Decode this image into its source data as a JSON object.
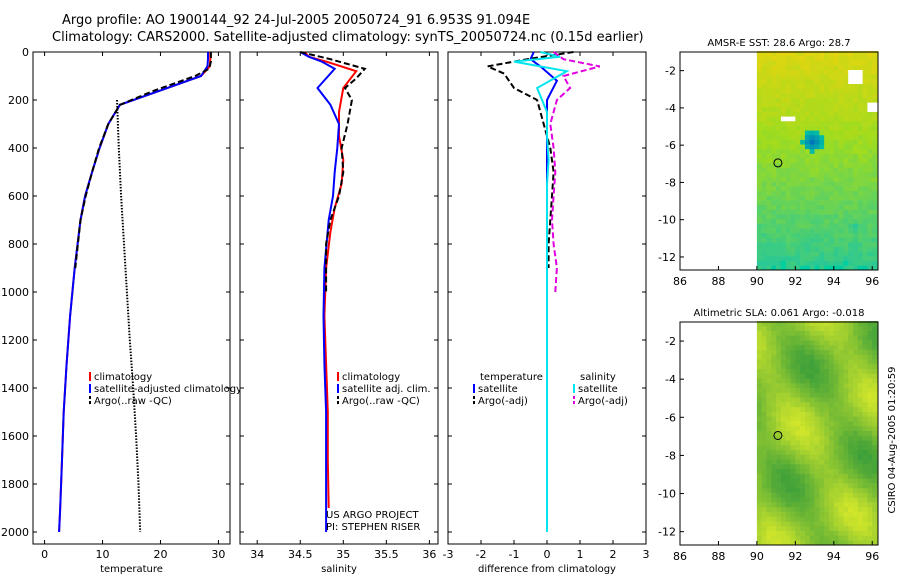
{
  "title_line1": "Argo profile: AO 1900144_92 24-Jul-2005 20050724_91 6.953S 91.094E",
  "title_line2": "Climatology: CARS2000. Satellite-adjusted climatology: synTS_20050724.nc (0.15d earlier)",
  "credit": "CSIRO 04-Aug-2005 01:20:59",
  "colors": {
    "climatology": "#ff0000",
    "satellite": "#0000ff",
    "argo": "#000000",
    "sal_satellite": "#00e5ee",
    "sal_argo": "#e000e0"
  },
  "chart_data": [
    {
      "type": "line",
      "xlabel": "temperature",
      "ylim": [
        2050,
        0
      ],
      "xlim": [
        -2,
        32
      ],
      "xticks": [
        "0",
        "10",
        "20",
        "30"
      ],
      "xtick_values": [
        0,
        10,
        20,
        30
      ],
      "yticks": [
        "0",
        "200",
        "400",
        "600",
        "800",
        "1000",
        "1200",
        "1400",
        "1600",
        "1800",
        "2000"
      ],
      "ytick_values": [
        0,
        200,
        400,
        600,
        800,
        1000,
        1200,
        1400,
        1600,
        1800,
        2000
      ],
      "legend": [
        "climatology",
        "satellite-adjusted climatology",
        "Argo(..raw -QC)"
      ],
      "series": [
        {
          "name": "climatology",
          "color": "#ff0000",
          "dash": "",
          "x": [
            28.6,
            28.6,
            28.5,
            27,
            20,
            13,
            11,
            9.5,
            8.2,
            7,
            6.2,
            5.2,
            4.4,
            3.8,
            3.3,
            3.0,
            2.7,
            2.5
          ],
          "y": [
            0,
            30,
            60,
            100,
            160,
            220,
            300,
            400,
            500,
            600,
            700,
            900,
            1100,
            1300,
            1500,
            1700,
            1900,
            2000
          ]
        },
        {
          "name": "satellite-adjusted climatology",
          "color": "#0000ff",
          "dash": "",
          "x": [
            28.2,
            28.2,
            28.1,
            27,
            20,
            13,
            11,
            9.5,
            8.2,
            7,
            6.2,
            5.2,
            4.4,
            3.8,
            3.3,
            3.0,
            2.7,
            2.5
          ],
          "y": [
            0,
            30,
            60,
            100,
            160,
            220,
            300,
            400,
            500,
            600,
            700,
            900,
            1100,
            1300,
            1500,
            1700,
            1900,
            2000
          ]
        },
        {
          "name": "Argo(..raw -QC)",
          "color": "#000000",
          "dash": "6,3",
          "x": [
            28.7,
            28.7,
            28.4,
            26,
            19,
            13,
            11,
            9.4,
            8.2,
            7.1,
            6.2,
            5.3
          ],
          "y": [
            0,
            40,
            70,
            100,
            160,
            220,
            300,
            400,
            500,
            600,
            700,
            900
          ]
        },
        {
          "name": "",
          "color": "#000000",
          "dash": "1.5,1.5",
          "x": [
            12.5,
            12.8,
            13.2,
            13.7,
            14.2,
            14.7,
            15.3,
            15.8,
            16.2,
            16.5
          ],
          "y": [
            200,
            400,
            600,
            800,
            1000,
            1200,
            1400,
            1600,
            1800,
            2000
          ]
        }
      ]
    },
    {
      "type": "line",
      "xlabel": "salinity",
      "ylim": [
        2050,
        0
      ],
      "xlim": [
        33.8,
        36.1
      ],
      "xticks": [
        "34",
        "34.5",
        "35",
        "35.5",
        "36"
      ],
      "xtick_values": [
        34,
        34.5,
        35,
        35.5,
        36
      ],
      "legend": [
        "climatology",
        "satellite adj. clim.",
        "Argo(..raw -QC)"
      ],
      "annotation": [
        "US ARGO PROJECT",
        "PI: STEPHEN RISER"
      ],
      "series": [
        {
          "name": "climatology",
          "color": "#ff0000",
          "dash": "",
          "x": [
            34.55,
            34.6,
            34.8,
            35.15,
            35.0,
            34.95,
            34.95,
            35.0,
            34.98,
            34.9,
            34.85,
            34.8,
            34.78,
            34.8,
            34.82,
            34.82,
            34.83
          ],
          "y": [
            0,
            20,
            40,
            80,
            150,
            250,
            350,
            450,
            550,
            650,
            750,
            900,
            1100,
            1300,
            1500,
            1700,
            1900
          ]
        },
        {
          "name": "satellite adj. clim.",
          "color": "#0000ff",
          "dash": "",
          "x": [
            34.5,
            34.6,
            34.75,
            34.9,
            34.7,
            34.85,
            34.95,
            34.93,
            34.9,
            34.88,
            34.83,
            34.78,
            34.77,
            34.78,
            34.8,
            34.8,
            34.8,
            34.8
          ],
          "y": [
            0,
            20,
            40,
            70,
            150,
            220,
            300,
            400,
            500,
            600,
            700,
            900,
            1100,
            1300,
            1500,
            1700,
            1900,
            2000
          ]
        },
        {
          "name": "Argo(..raw -QC)",
          "color": "#000000",
          "dash": "6,3",
          "x": [
            34.5,
            34.85,
            35.25,
            35.15,
            35.02,
            35.1,
            35.05,
            34.98,
            35.0,
            34.95,
            34.85,
            34.8,
            34.8,
            34.8
          ],
          "y": [
            0,
            30,
            70,
            110,
            150,
            200,
            300,
            400,
            500,
            600,
            700,
            800,
            900,
            1000
          ]
        }
      ]
    },
    {
      "type": "line",
      "xlabel": "difference from climatology",
      "ylim": [
        2050,
        0
      ],
      "xlim": [
        -3,
        3
      ],
      "xticks": [
        "-3",
        "-2",
        "-1",
        "0",
        "1",
        "2",
        "3"
      ],
      "xtick_values": [
        -3,
        -2,
        -1,
        0,
        1,
        2,
        3
      ],
      "legend_left_title": "temperature",
      "legend_left": [
        "satellite",
        "Argo(-adj)"
      ],
      "legend_right_title": "salinity",
      "legend_right": [
        "satellite",
        "Argo(-adj)"
      ],
      "series": [
        {
          "name": "temperature satellite",
          "color": "#0000ff",
          "dash": "",
          "x": [
            -0.4,
            -0.5,
            -0.2,
            0.3,
            0,
            0,
            0,
            0,
            0,
            0,
            0,
            0,
            0,
            0
          ],
          "y": [
            0,
            30,
            60,
            120,
            200,
            400,
            600,
            800,
            1000,
            1200,
            1400,
            1600,
            1800,
            2000
          ]
        },
        {
          "name": "temperature Argo(-adj)",
          "color": "#000000",
          "dash": "6,3",
          "x": [
            0.8,
            -0.6,
            -1.8,
            -1.3,
            -1.0,
            -0.3,
            -0.1,
            0.1,
            0.2,
            0.15,
            0.1,
            0.05,
            0.05
          ],
          "y": [
            0,
            30,
            60,
            90,
            150,
            200,
            300,
            400,
            500,
            600,
            700,
            800,
            900
          ]
        },
        {
          "name": "salinity satellite",
          "color": "#00e5ee",
          "dash": "",
          "x": [
            -0.2,
            0.4,
            -1.0,
            0.6,
            -0.3,
            0,
            0,
            0.05,
            0,
            0,
            0,
            0,
            0,
            0,
            0,
            0,
            0,
            0
          ],
          "y": [
            0,
            20,
            40,
            80,
            150,
            250,
            350,
            450,
            550,
            700,
            900,
            1100,
            1300,
            1500,
            1700,
            1800,
            1900,
            2000
          ]
        },
        {
          "name": "salinity Argo(-adj)",
          "color": "#e000e0",
          "dash": "6,3",
          "x": [
            0.2,
            0.5,
            1.6,
            0.5,
            0.7,
            0.3,
            0.1,
            0.2,
            0.25,
            0.2,
            0.15,
            0.2,
            0.3,
            0.25
          ],
          "y": [
            0,
            30,
            60,
            100,
            150,
            200,
            300,
            400,
            500,
            600,
            700,
            800,
            900,
            1000
          ]
        }
      ]
    },
    {
      "type": "heatmap",
      "title": "AMSR-E SST: 28.6 Argo: 28.7",
      "xlim": [
        86,
        96.3
      ],
      "ylim": [
        -12.7,
        -1
      ],
      "xticks": [
        "86",
        "88",
        "90",
        "92",
        "94",
        "96"
      ],
      "xtick_values": [
        86,
        88,
        90,
        92,
        94,
        96
      ],
      "yticks": [
        "-2",
        "-4",
        "-6",
        "-8",
        "-10",
        "-12"
      ],
      "ytick_values": [
        -2,
        -4,
        -6,
        -8,
        -10,
        -12
      ],
      "data_xrange": [
        90,
        96.3
      ],
      "marker": [
        91.094,
        -6.953
      ],
      "palette": "sst"
    },
    {
      "type": "heatmap",
      "title": "Altimetric SLA: 0.061 Argo: -0.018",
      "xlim": [
        86,
        96.3
      ],
      "ylim": [
        -12.7,
        -1
      ],
      "xticks": [
        "86",
        "88",
        "90",
        "92",
        "94",
        "96"
      ],
      "xtick_values": [
        86,
        88,
        90,
        92,
        94,
        96
      ],
      "yticks": [
        "-2",
        "-4",
        "-6",
        "-8",
        "-10",
        "-12"
      ],
      "ytick_values": [
        -2,
        -4,
        -6,
        -8,
        -10,
        -12
      ],
      "data_xrange": [
        90,
        96.3
      ],
      "marker": [
        91.094,
        -6.953
      ],
      "palette": "sla"
    }
  ]
}
